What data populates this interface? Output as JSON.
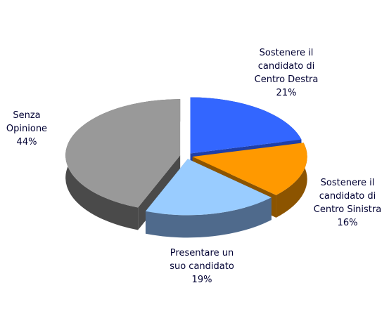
{
  "chart_data": {
    "type": "pie3d",
    "categories": [
      "Sostenere il candidato di Centro Destra",
      "Sostenere il candidato di Centro Sinistra",
      "Presentare un suo candidato",
      "Senza Opinione"
    ],
    "values": [
      21,
      16,
      19,
      44
    ],
    "value_labels": [
      "21%",
      "16%",
      "19%",
      "44%"
    ],
    "colors": [
      "#3366ff",
      "#ff9900",
      "#99ccff",
      "#999999"
    ],
    "side_colors": [
      "#1f3fa8",
      "#8c5400",
      "#4f6a8c",
      "#4a4a4a"
    ]
  }
}
